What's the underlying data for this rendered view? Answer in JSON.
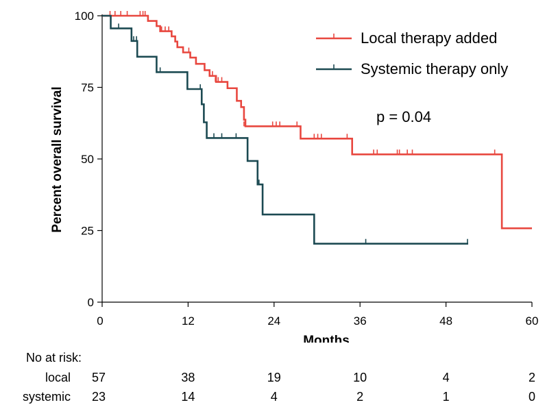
{
  "chart_data": {
    "type": "line",
    "subtype": "kaplan-meier step",
    "title": "",
    "xlabel": "Months",
    "ylabel": "Percent overall survival",
    "xlim": [
      0,
      60
    ],
    "ylim": [
      0,
      100
    ],
    "xticks": [
      0,
      12,
      24,
      36,
      48,
      60
    ],
    "yticks": [
      0,
      25,
      50,
      75,
      100
    ],
    "grid": false,
    "legend_position": "top-right",
    "annotation": "p = 0.04",
    "series": [
      {
        "name": "Local therapy added",
        "color": "#e8473f",
        "steps": [
          [
            0,
            100
          ],
          [
            6.4,
            98.2
          ],
          [
            7.6,
            96.4
          ],
          [
            8.1,
            94.6
          ],
          [
            9.7,
            92.8
          ],
          [
            10.2,
            91
          ],
          [
            10.5,
            89
          ],
          [
            11.3,
            87.2
          ],
          [
            12.3,
            85.4
          ],
          [
            13.1,
            83.2
          ],
          [
            14.3,
            81
          ],
          [
            15,
            79
          ],
          [
            15.9,
            76.9
          ],
          [
            17.5,
            74.7
          ],
          [
            18.8,
            70.3
          ],
          [
            19.4,
            68.1
          ],
          [
            19.8,
            63.7
          ],
          [
            20,
            61.4
          ],
          [
            27.7,
            57.1
          ],
          [
            34.9,
            51.6
          ],
          [
            55.8,
            25.8
          ],
          [
            60,
            25.8
          ]
        ],
        "censored": [
          [
            1.1,
            100
          ],
          [
            1.8,
            100
          ],
          [
            2.6,
            100
          ],
          [
            3.5,
            100
          ],
          [
            5.3,
            100
          ],
          [
            5.7,
            100
          ],
          [
            6.0,
            100
          ],
          [
            7.6,
            96.4
          ],
          [
            8.3,
            94.6
          ],
          [
            8.8,
            94.6
          ],
          [
            9.3,
            94.6
          ],
          [
            12.1,
            87.2
          ],
          [
            15.4,
            79
          ],
          [
            15.8,
            76.9
          ],
          [
            16.2,
            76.9
          ],
          [
            16.7,
            76.9
          ],
          [
            19.8,
            61.4
          ],
          [
            23.8,
            61.4
          ],
          [
            24.3,
            61.4
          ],
          [
            24.8,
            61.4
          ],
          [
            27.2,
            61.4
          ],
          [
            29.6,
            57.1
          ],
          [
            30.1,
            57.1
          ],
          [
            30.6,
            57.1
          ],
          [
            34.2,
            57.1
          ],
          [
            37.9,
            51.6
          ],
          [
            38.4,
            51.6
          ],
          [
            41.2,
            51.6
          ],
          [
            41.5,
            51.6
          ],
          [
            42.6,
            51.6
          ],
          [
            43.3,
            51.6
          ],
          [
            54.8,
            51.6
          ]
        ]
      },
      {
        "name": "Systemic therapy only",
        "color": "#1c4a52",
        "steps": [
          [
            0,
            100
          ],
          [
            1.2,
            95.6
          ],
          [
            4.1,
            91.2
          ],
          [
            4.9,
            85.7
          ],
          [
            7.6,
            80.3
          ],
          [
            11.9,
            74.4
          ],
          [
            13.9,
            69.1
          ],
          [
            14.2,
            62.8
          ],
          [
            14.6,
            57.3
          ],
          [
            20.3,
            49.3
          ],
          [
            21.7,
            41.1
          ],
          [
            22.4,
            30.6
          ],
          [
            29.6,
            20.4
          ],
          [
            51.1,
            20.4
          ]
        ],
        "censored": [
          [
            2.3,
            95.6
          ],
          [
            4.4,
            91.2
          ],
          [
            4.8,
            91.2
          ],
          [
            8.1,
            80.3
          ],
          [
            13.7,
            74.4
          ],
          [
            15.6,
            57.3
          ],
          [
            16.7,
            57.3
          ],
          [
            18.7,
            57.3
          ],
          [
            21.9,
            41.1
          ],
          [
            36.8,
            20.4
          ],
          [
            51.0,
            20.4
          ]
        ]
      }
    ]
  },
  "risk_table": {
    "title": "No at risk:",
    "timepoints": [
      0,
      12,
      24,
      36,
      48,
      60
    ],
    "rows": [
      {
        "label": "local",
        "values": [
          "57",
          "38",
          "19",
          "10",
          "4",
          "2"
        ]
      },
      {
        "label": "systemic",
        "values": [
          "23",
          "14",
          "4",
          "2",
          "1",
          "0"
        ]
      }
    ]
  }
}
